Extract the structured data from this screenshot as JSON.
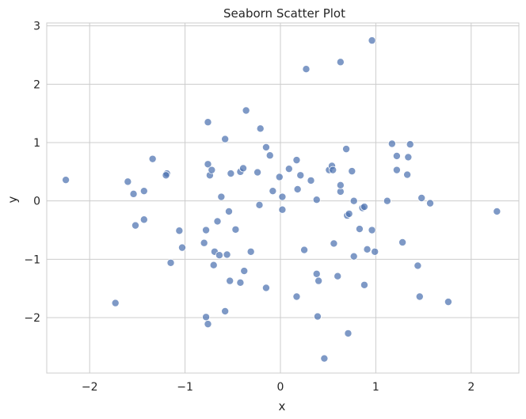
{
  "chart_data": {
    "type": "scatter",
    "title": "Seaborn Scatter Plot",
    "xlabel": "x",
    "ylabel": "y",
    "xlim": [
      -2.45,
      2.5
    ],
    "ylim": [
      -2.95,
      3.05
    ],
    "xticks": [
      -2,
      -1,
      0,
      1,
      2
    ],
    "xtick_labels": [
      "−2",
      "−1",
      "0",
      "1",
      "2"
    ],
    "yticks": [
      -2,
      -1,
      0,
      1,
      2,
      3
    ],
    "ytick_labels": [
      "−2",
      "−1",
      "0",
      "1",
      "2",
      "3"
    ],
    "grid": true,
    "color": "#4c72b0",
    "points": [
      {
        "x": -2.25,
        "y": 0.36
      },
      {
        "x": -1.73,
        "y": -1.75
      },
      {
        "x": -1.6,
        "y": 0.33
      },
      {
        "x": -1.54,
        "y": 0.12
      },
      {
        "x": -1.52,
        "y": -0.42
      },
      {
        "x": -1.43,
        "y": 0.17
      },
      {
        "x": -1.43,
        "y": -0.32
      },
      {
        "x": -1.34,
        "y": 0.72
      },
      {
        "x": -1.19,
        "y": 0.47
      },
      {
        "x": -1.2,
        "y": 0.44
      },
      {
        "x": -1.15,
        "y": -1.06
      },
      {
        "x": -1.06,
        "y": -0.51
      },
      {
        "x": -1.03,
        "y": -0.8
      },
      {
        "x": -0.78,
        "y": -0.5
      },
      {
        "x": -0.8,
        "y": -0.72
      },
      {
        "x": -0.76,
        "y": 0.63
      },
      {
        "x": -0.74,
        "y": 0.44
      },
      {
        "x": -0.72,
        "y": 0.53
      },
      {
        "x": -0.76,
        "y": 1.35
      },
      {
        "x": -0.78,
        "y": -1.99
      },
      {
        "x": -0.76,
        "y": -2.11
      },
      {
        "x": -0.69,
        "y": -0.87
      },
      {
        "x": -0.66,
        "y": -0.35
      },
      {
        "x": -0.7,
        "y": -1.1
      },
      {
        "x": -0.62,
        "y": 0.07
      },
      {
        "x": -0.64,
        "y": -0.93
      },
      {
        "x": -0.58,
        "y": 1.06
      },
      {
        "x": -0.56,
        "y": -0.92
      },
      {
        "x": -0.54,
        "y": -0.18
      },
      {
        "x": -0.52,
        "y": 0.47
      },
      {
        "x": -0.53,
        "y": -1.37
      },
      {
        "x": -0.58,
        "y": -1.89
      },
      {
        "x": -0.47,
        "y": -0.49
      },
      {
        "x": -0.42,
        "y": 0.5
      },
      {
        "x": -0.39,
        "y": 0.56
      },
      {
        "x": -0.42,
        "y": -1.4
      },
      {
        "x": -0.38,
        "y": -1.2
      },
      {
        "x": -0.36,
        "y": 1.55
      },
      {
        "x": -0.31,
        "y": -0.87
      },
      {
        "x": -0.24,
        "y": 0.49
      },
      {
        "x": -0.21,
        "y": 1.24
      },
      {
        "x": -0.22,
        "y": -0.07
      },
      {
        "x": -0.15,
        "y": 0.92
      },
      {
        "x": -0.11,
        "y": 0.78
      },
      {
        "x": -0.08,
        "y": 0.17
      },
      {
        "x": -0.15,
        "y": -1.49
      },
      {
        "x": -0.01,
        "y": 0.41
      },
      {
        "x": 0.02,
        "y": 0.07
      },
      {
        "x": 0.02,
        "y": -0.15
      },
      {
        "x": 0.09,
        "y": 0.55
      },
      {
        "x": 0.17,
        "y": 0.7
      },
      {
        "x": 0.18,
        "y": 0.2
      },
      {
        "x": 0.21,
        "y": 0.44
      },
      {
        "x": 0.25,
        "y": -0.84
      },
      {
        "x": 0.27,
        "y": 2.26
      },
      {
        "x": 0.17,
        "y": -1.64
      },
      {
        "x": 0.32,
        "y": 0.35
      },
      {
        "x": 0.38,
        "y": 0.02
      },
      {
        "x": 0.38,
        "y": -1.25
      },
      {
        "x": 0.4,
        "y": -1.37
      },
      {
        "x": 0.39,
        "y": -1.98
      },
      {
        "x": 0.46,
        "y": -2.7
      },
      {
        "x": 0.51,
        "y": 0.53
      },
      {
        "x": 0.54,
        "y": 0.6
      },
      {
        "x": 0.55,
        "y": 0.53
      },
      {
        "x": 0.56,
        "y": -0.73
      },
      {
        "x": 0.6,
        "y": -1.29
      },
      {
        "x": 0.63,
        "y": 0.16
      },
      {
        "x": 0.63,
        "y": 0.27
      },
      {
        "x": 0.63,
        "y": 2.38
      },
      {
        "x": 0.69,
        "y": 0.89
      },
      {
        "x": 0.7,
        "y": -0.25
      },
      {
        "x": 0.72,
        "y": -0.22
      },
      {
        "x": 0.75,
        "y": 0.51
      },
      {
        "x": 0.77,
        "y": 0.0
      },
      {
        "x": 0.77,
        "y": -0.95
      },
      {
        "x": 0.71,
        "y": -2.27
      },
      {
        "x": 0.83,
        "y": -0.48
      },
      {
        "x": 0.86,
        "y": -0.12
      },
      {
        "x": 0.88,
        "y": -0.1
      },
      {
        "x": 0.88,
        "y": -1.44
      },
      {
        "x": 0.91,
        "y": -0.83
      },
      {
        "x": 0.96,
        "y": -0.5
      },
      {
        "x": 0.99,
        "y": -0.87
      },
      {
        "x": 0.96,
        "y": 2.75
      },
      {
        "x": 1.12,
        "y": 0.0
      },
      {
        "x": 1.17,
        "y": 0.98
      },
      {
        "x": 1.22,
        "y": 0.77
      },
      {
        "x": 1.22,
        "y": 0.53
      },
      {
        "x": 1.28,
        "y": -0.71
      },
      {
        "x": 1.33,
        "y": 0.45
      },
      {
        "x": 1.34,
        "y": 0.75
      },
      {
        "x": 1.36,
        "y": 0.97
      },
      {
        "x": 1.44,
        "y": -1.11
      },
      {
        "x": 1.46,
        "y": -1.64
      },
      {
        "x": 1.48,
        "y": 0.05
      },
      {
        "x": 1.57,
        "y": -0.04
      },
      {
        "x": 1.76,
        "y": -1.73
      },
      {
        "x": 2.27,
        "y": -0.18
      }
    ]
  }
}
